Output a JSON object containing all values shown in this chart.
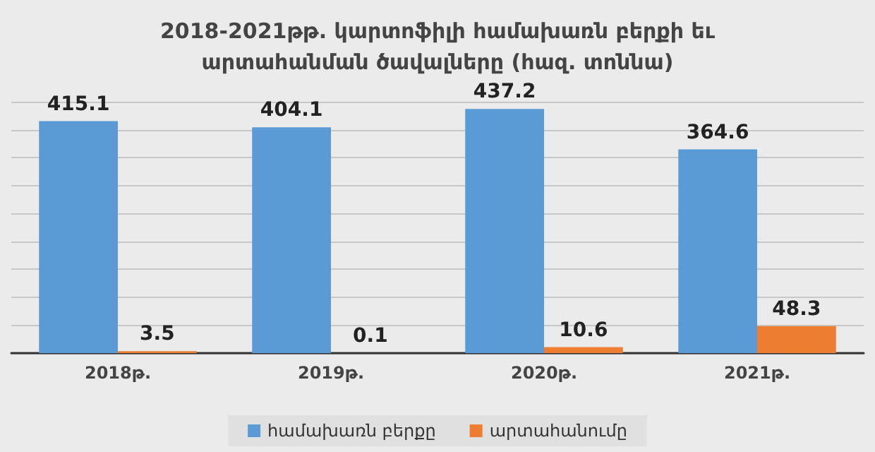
{
  "chart_data": {
    "type": "bar",
    "title": "2018-2021թթ. կարտոֆիլի համախառն բերքի եւ\nարտահանման ծավալները (հազ. տոննա)",
    "categories": [
      "2018թ.",
      "2019թ.",
      "2020թ.",
      "2021թ."
    ],
    "series": [
      {
        "name": "համախառն բերքը",
        "color": "#5b9bd5",
        "values": [
          415.1,
          404.1,
          437.2,
          364.6
        ]
      },
      {
        "name": "արտահանումը",
        "color": "#ed7d31",
        "values": [
          3.5,
          0.1,
          10.6,
          48.3
        ]
      }
    ],
    "ylim": [
      0,
      450
    ],
    "yticks": [
      {
        "value": 0,
        "label": null
      },
      {
        "value": 50,
        "label": null
      },
      {
        "value": 100,
        "label": null
      },
      {
        "value": 150,
        "label": null
      },
      {
        "value": 200,
        "label": null
      },
      {
        "value": 250,
        "label": null
      },
      {
        "value": 300,
        "label": null
      },
      {
        "value": 350,
        "label": null
      },
      {
        "value": 400,
        "label": null
      },
      {
        "value": 450,
        "label": null
      }
    ],
    "tick_labels": "x",
    "grid": "y",
    "legend": "bottom",
    "data_labels": true
  }
}
